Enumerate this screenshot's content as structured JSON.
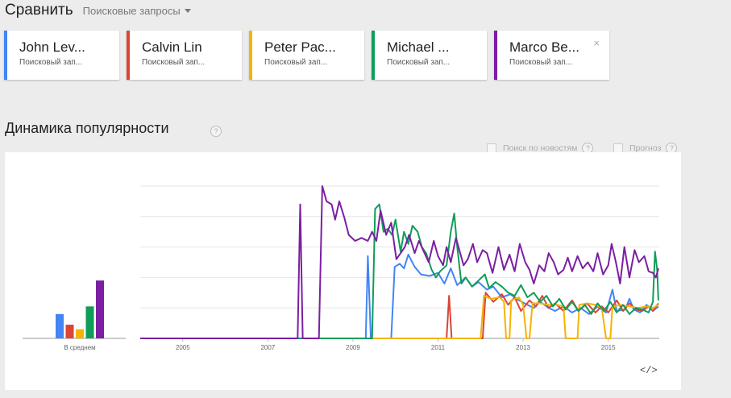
{
  "header": {
    "title": "Сравнить",
    "compare_type": "Поисковые запросы"
  },
  "terms": [
    {
      "name": "John Lev...",
      "type": "Поисковый зап...",
      "color": "#4285f4"
    },
    {
      "name": "Calvin Lin",
      "type": "Поисковый зап...",
      "color": "#db4437"
    },
    {
      "name": "Peter Pac...",
      "type": "Поисковый зап...",
      "color": "#f4b400"
    },
    {
      "name": "Michael ...",
      "type": "Поисковый зап...",
      "color": "#0f9d58"
    },
    {
      "name": "Marco Be...",
      "type": "Поисковый зап...",
      "color": "#7b1fa2",
      "close_icon": "×"
    }
  ],
  "section": {
    "title": "Динамика популярности",
    "news_option": "Поиск по новостям",
    "forecast_option": "Прогноз",
    "help_symbol": "?"
  },
  "chart_data": {
    "type": "line",
    "average_label": "В среднем",
    "x_ticks": [
      "2005",
      "2007",
      "2009",
      "2011",
      "2013",
      "2015"
    ],
    "x_range": [
      2004,
      2016.2
    ],
    "y_range": [
      0,
      100
    ],
    "grid": true,
    "averages": [
      {
        "color": "#4285f4",
        "value": 16
      },
      {
        "color": "#db4437",
        "value": 9
      },
      {
        "color": "#f4b400",
        "value": 6
      },
      {
        "color": "#0f9d58",
        "value": 21
      },
      {
        "color": "#7b1fa2",
        "value": 38
      }
    ],
    "series": [
      {
        "color": "#4285f4",
        "points": [
          [
            2004,
            0
          ],
          [
            2009.3,
            0
          ],
          [
            2009.35,
            54
          ],
          [
            2009.42,
            0
          ],
          [
            2009.9,
            0
          ],
          [
            2009.98,
            47
          ],
          [
            2010.1,
            49
          ],
          [
            2010.2,
            46
          ],
          [
            2010.3,
            55
          ],
          [
            2010.45,
            47
          ],
          [
            2010.6,
            42
          ],
          [
            2010.8,
            41
          ],
          [
            2011.0,
            43
          ],
          [
            2011.15,
            36
          ],
          [
            2011.3,
            46
          ],
          [
            2011.45,
            35
          ],
          [
            2011.65,
            40
          ],
          [
            2011.8,
            34
          ],
          [
            2011.95,
            37
          ],
          [
            2012.15,
            32
          ],
          [
            2012.3,
            34
          ],
          [
            2012.5,
            27
          ],
          [
            2012.7,
            29
          ],
          [
            2012.9,
            25
          ],
          [
            2013.1,
            22
          ],
          [
            2013.25,
            20
          ],
          [
            2013.4,
            24
          ],
          [
            2013.6,
            20
          ],
          [
            2013.75,
            18
          ],
          [
            2013.95,
            21
          ],
          [
            2014.15,
            17
          ],
          [
            2014.35,
            20
          ],
          [
            2014.55,
            16
          ],
          [
            2014.75,
            21
          ],
          [
            2014.95,
            17
          ],
          [
            2015.1,
            32
          ],
          [
            2015.2,
            18
          ],
          [
            2015.4,
            19
          ],
          [
            2015.5,
            26
          ],
          [
            2015.6,
            19
          ],
          [
            2015.75,
            17
          ],
          [
            2015.9,
            22
          ],
          [
            2016.05,
            18
          ],
          [
            2016.18,
            21
          ]
        ]
      },
      {
        "color": "#db4437",
        "points": [
          [
            2004,
            0
          ],
          [
            2011.2,
            0
          ],
          [
            2011.26,
            28
          ],
          [
            2011.32,
            0
          ],
          [
            2012.05,
            0
          ],
          [
            2012.12,
            30
          ],
          [
            2012.3,
            24
          ],
          [
            2012.5,
            29
          ],
          [
            2012.65,
            22
          ],
          [
            2012.8,
            27
          ],
          [
            2012.95,
            18
          ],
          [
            2013.15,
            25
          ],
          [
            2013.3,
            21
          ],
          [
            2013.45,
            28
          ],
          [
            2013.6,
            20
          ],
          [
            2013.75,
            23
          ],
          [
            2013.95,
            18
          ],
          [
            2014.15,
            25
          ],
          [
            2014.3,
            18
          ],
          [
            2014.5,
            23
          ],
          [
            2014.7,
            17
          ],
          [
            2014.85,
            21
          ],
          [
            2015.0,
            17
          ],
          [
            2015.2,
            25
          ],
          [
            2015.35,
            18
          ],
          [
            2015.5,
            23
          ],
          [
            2015.65,
            19
          ],
          [
            2015.8,
            18
          ],
          [
            2015.95,
            21
          ],
          [
            2016.05,
            18
          ],
          [
            2016.18,
            23
          ]
        ]
      },
      {
        "color": "#f4b400",
        "points": [
          [
            2004,
            0
          ],
          [
            2012.0,
            0
          ],
          [
            2012.08,
            28
          ],
          [
            2012.25,
            26
          ],
          [
            2012.45,
            27
          ],
          [
            2012.55,
            24
          ],
          [
            2012.6,
            0
          ],
          [
            2012.68,
            0
          ],
          [
            2012.72,
            25
          ],
          [
            2012.9,
            27
          ],
          [
            2013.0,
            22
          ],
          [
            2013.08,
            0
          ],
          [
            2013.15,
            0
          ],
          [
            2013.22,
            23
          ],
          [
            2013.4,
            23
          ],
          [
            2013.6,
            22
          ],
          [
            2013.8,
            22
          ],
          [
            2013.95,
            21
          ],
          [
            2014.0,
            0
          ],
          [
            2014.28,
            0
          ],
          [
            2014.32,
            22
          ],
          [
            2014.5,
            23
          ],
          [
            2014.7,
            22
          ],
          [
            2014.85,
            20
          ],
          [
            2014.95,
            0
          ],
          [
            2015.05,
            0
          ],
          [
            2015.1,
            21
          ],
          [
            2015.3,
            22
          ],
          [
            2015.5,
            21
          ],
          [
            2015.7,
            20
          ],
          [
            2015.9,
            21
          ],
          [
            2016.05,
            20
          ],
          [
            2016.18,
            22
          ]
        ]
      },
      {
        "color": "#0f9d58",
        "points": [
          [
            2004,
            0
          ],
          [
            2009.45,
            0
          ],
          [
            2009.52,
            85
          ],
          [
            2009.62,
            88
          ],
          [
            2009.72,
            70
          ],
          [
            2009.82,
            72
          ],
          [
            2009.92,
            68
          ],
          [
            2010.0,
            78
          ],
          [
            2010.12,
            57
          ],
          [
            2010.2,
            70
          ],
          [
            2010.3,
            62
          ],
          [
            2010.4,
            74
          ],
          [
            2010.52,
            70
          ],
          [
            2010.62,
            60
          ],
          [
            2010.72,
            56
          ],
          [
            2010.85,
            45
          ],
          [
            2010.95,
            40
          ],
          [
            2011.05,
            44
          ],
          [
            2011.2,
            48
          ],
          [
            2011.3,
            70
          ],
          [
            2011.38,
            82
          ],
          [
            2011.45,
            60
          ],
          [
            2011.55,
            36
          ],
          [
            2011.65,
            40
          ],
          [
            2011.8,
            34
          ],
          [
            2011.95,
            38
          ],
          [
            2012.1,
            42
          ],
          [
            2012.2,
            33
          ],
          [
            2012.35,
            37
          ],
          [
            2012.5,
            34
          ],
          [
            2012.65,
            30
          ],
          [
            2012.8,
            28
          ],
          [
            2012.95,
            35
          ],
          [
            2013.1,
            27
          ],
          [
            2013.25,
            30
          ],
          [
            2013.4,
            24
          ],
          [
            2013.55,
            28
          ],
          [
            2013.7,
            21
          ],
          [
            2013.85,
            26
          ],
          [
            2014.0,
            19
          ],
          [
            2014.15,
            24
          ],
          [
            2014.3,
            18
          ],
          [
            2014.45,
            22
          ],
          [
            2014.6,
            16
          ],
          [
            2014.75,
            23
          ],
          [
            2014.9,
            18
          ],
          [
            2015.05,
            24
          ],
          [
            2015.2,
            17
          ],
          [
            2015.35,
            22
          ],
          [
            2015.5,
            16
          ],
          [
            2015.65,
            20
          ],
          [
            2015.8,
            19
          ],
          [
            2015.95,
            17
          ],
          [
            2016.05,
            24
          ],
          [
            2016.1,
            57
          ],
          [
            2016.15,
            45
          ],
          [
            2016.18,
            25
          ]
        ]
      },
      {
        "color": "#7b1fa2",
        "points": [
          [
            2004,
            0
          ],
          [
            2007.7,
            0
          ],
          [
            2007.76,
            88
          ],
          [
            2007.82,
            0
          ],
          [
            2008.2,
            0
          ],
          [
            2008.28,
            100
          ],
          [
            2008.38,
            90
          ],
          [
            2008.5,
            88
          ],
          [
            2008.58,
            78
          ],
          [
            2008.68,
            90
          ],
          [
            2008.8,
            79
          ],
          [
            2008.9,
            68
          ],
          [
            2009.05,
            64
          ],
          [
            2009.2,
            66
          ],
          [
            2009.35,
            64
          ],
          [
            2009.45,
            70
          ],
          [
            2009.55,
            64
          ],
          [
            2009.65,
            84
          ],
          [
            2009.78,
            68
          ],
          [
            2009.9,
            76
          ],
          [
            2010.02,
            52
          ],
          [
            2010.12,
            56
          ],
          [
            2010.22,
            60
          ],
          [
            2010.32,
            68
          ],
          [
            2010.45,
            56
          ],
          [
            2010.55,
            64
          ],
          [
            2010.65,
            58
          ],
          [
            2010.78,
            50
          ],
          [
            2010.9,
            64
          ],
          [
            2011.0,
            54
          ],
          [
            2011.12,
            48
          ],
          [
            2011.2,
            60
          ],
          [
            2011.3,
            50
          ],
          [
            2011.42,
            66
          ],
          [
            2011.52,
            56
          ],
          [
            2011.6,
            48
          ],
          [
            2011.7,
            52
          ],
          [
            2011.82,
            62
          ],
          [
            2011.92,
            50
          ],
          [
            2012.05,
            58
          ],
          [
            2012.15,
            56
          ],
          [
            2012.28,
            43
          ],
          [
            2012.42,
            60
          ],
          [
            2012.55,
            45
          ],
          [
            2012.68,
            55
          ],
          [
            2012.8,
            44
          ],
          [
            2012.92,
            62
          ],
          [
            2013.05,
            50
          ],
          [
            2013.15,
            45
          ],
          [
            2013.25,
            36
          ],
          [
            2013.38,
            48
          ],
          [
            2013.5,
            44
          ],
          [
            2013.6,
            56
          ],
          [
            2013.72,
            50
          ],
          [
            2013.82,
            42
          ],
          [
            2013.95,
            45
          ],
          [
            2014.05,
            53
          ],
          [
            2014.15,
            44
          ],
          [
            2014.28,
            54
          ],
          [
            2014.4,
            46
          ],
          [
            2014.52,
            50
          ],
          [
            2014.65,
            44
          ],
          [
            2014.75,
            56
          ],
          [
            2014.88,
            42
          ],
          [
            2015.0,
            48
          ],
          [
            2015.08,
            62
          ],
          [
            2015.18,
            50
          ],
          [
            2015.28,
            36
          ],
          [
            2015.38,
            60
          ],
          [
            2015.5,
            40
          ],
          [
            2015.62,
            58
          ],
          [
            2015.72,
            50
          ],
          [
            2015.85,
            54
          ],
          [
            2015.95,
            44
          ],
          [
            2016.05,
            43
          ],
          [
            2016.12,
            40
          ],
          [
            2016.18,
            46
          ]
        ]
      }
    ]
  }
}
